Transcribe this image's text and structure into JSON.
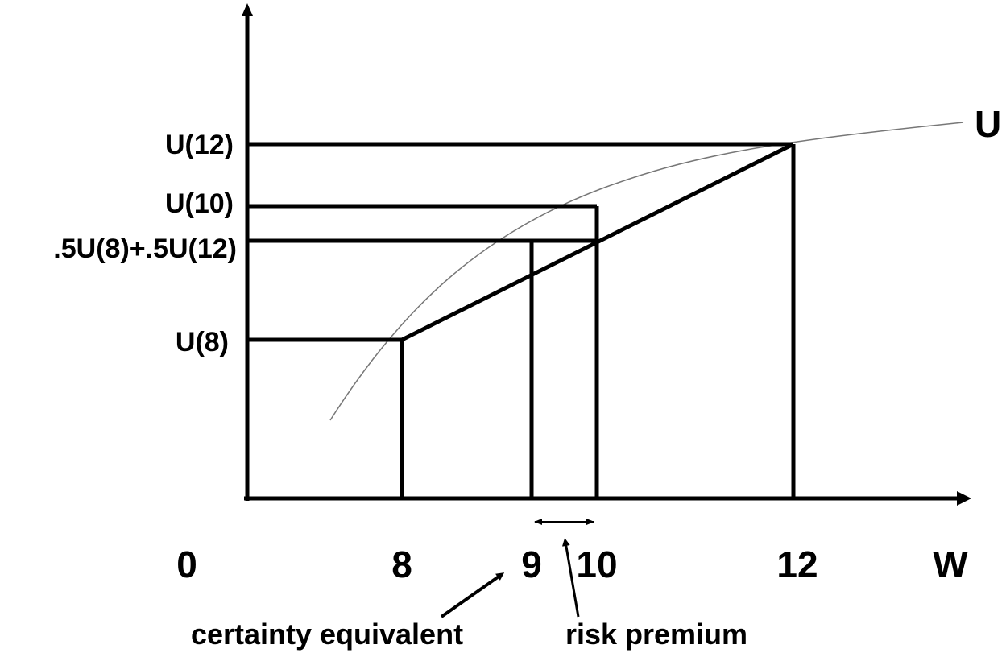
{
  "y_labels": {
    "u12": "U(12)",
    "u10": "U(10)",
    "expected": ".5U(8)+.5U(12)",
    "u8": "U(8)"
  },
  "x_labels": {
    "zero": "0",
    "eight": "8",
    "nine": "9",
    "ten": "10",
    "twelve": "12",
    "w": "W"
  },
  "curve_label": "U",
  "annotations": {
    "certainty_equivalent": "certainty equivalent",
    "risk_premium": "risk premium"
  }
}
